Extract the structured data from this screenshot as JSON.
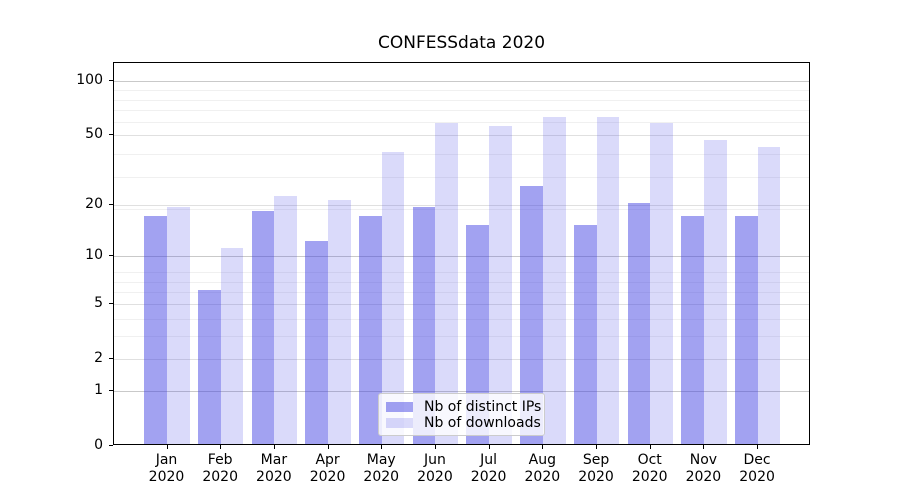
{
  "figure": {
    "title": "CONFESSdata 2020"
  },
  "legend": {
    "items": [
      {
        "label": "Nb of distinct IPs",
        "swatch_color": "rgba(60,60,226,0.48)"
      },
      {
        "label": "Nb of downloads",
        "swatch_color": "rgba(60,60,226,0.19)"
      }
    ]
  },
  "chart_data": {
    "type": "bar",
    "title": "CONFESSdata 2020",
    "xlabel": "",
    "ylabel": "",
    "categories": [
      "Jan",
      "Feb",
      "Mar",
      "Apr",
      "May",
      "Jun",
      "Jul",
      "Aug",
      "Sep",
      "Oct",
      "Nov",
      "Dec"
    ],
    "category_year_suffix": "2020",
    "series": [
      {
        "name": "Nb of distinct IPs",
        "color": "rgba(60,60,226,0.48)",
        "values": [
          17,
          6,
          18,
          12,
          17,
          19,
          15,
          25,
          15,
          20,
          17,
          17
        ]
      },
      {
        "name": "Nb of downloads",
        "color": "rgba(60,60,226,0.19)",
        "values": [
          19,
          11,
          22,
          21,
          39,
          57,
          55,
          62,
          62,
          57,
          46,
          42
        ]
      }
    ],
    "y_axis": {
      "scale": "log1p",
      "ylim": [
        0,
        100
      ],
      "tick_values": [
        0,
        1,
        2,
        5,
        10,
        20,
        50,
        100
      ],
      "tick_labels": [
        "0",
        "1",
        "2",
        "5",
        "10",
        "20",
        "50",
        "100"
      ],
      "major_grid_values": [
        1,
        10,
        100
      ],
      "mid_grid_values": [
        2,
        5,
        20,
        50
      ],
      "minor_grid_values": [
        2,
        3,
        4,
        6,
        7,
        8,
        19,
        29,
        39,
        59,
        69,
        79,
        89
      ],
      "grid": true
    },
    "legend_position": "lower center"
  }
}
